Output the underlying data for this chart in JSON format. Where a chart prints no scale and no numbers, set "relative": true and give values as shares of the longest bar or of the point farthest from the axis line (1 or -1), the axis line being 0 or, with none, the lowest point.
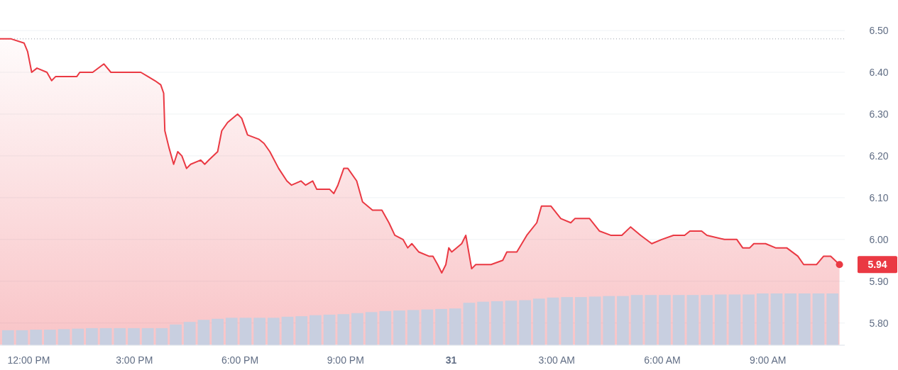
{
  "chart_data": [
    {
      "type": "area",
      "x": [
        "--10-30T11:11",
        "--10-30T11:30",
        "--10-30T11:52",
        "--10-30T11:58",
        "--10-30T12:05",
        "--10-30T12:14",
        "--10-30T12:31",
        "--10-30T12:39",
        "--10-30T12:46",
        "--10-30T13:13",
        "--10-30T13:22",
        "--10-30T13:27",
        "--10-30T13:49",
        "--10-30T14:08",
        "--10-30T14:20",
        "--10-30T14:40",
        "--10-30T14:49",
        "--10-30T15:11",
        "--10-30T15:23",
        "--10-30T15:35",
        "--10-30T15:45",
        "--10-30T15:50",
        "--10-30T15:52",
        "--10-30T15:59",
        "--10-30T16:07",
        "--10-30T16:14",
        "--10-30T16:21",
        "--10-30T16:29",
        "--10-30T16:36",
        "--10-30T16:53",
        "--10-30T17:00",
        "--10-30T17:07",
        "--10-30T17:22",
        "--10-30T17:29",
        "--10-30T17:39",
        "--10-30T17:56",
        "--10-30T18:03",
        "--10-30T18:13",
        "--10-30T18:32",
        "--10-30T18:41",
        "--10-30T18:51",
        "--10-30T19:06",
        "--10-30T19:20",
        "--10-30T19:28",
        "--10-30T19:44",
        "--10-30T19:52",
        "--10-30T20:04",
        "--10-30T20:11",
        "--10-30T20:33",
        "--10-30T20:40",
        "--10-30T20:47",
        "--10-30T20:57",
        "--10-30T21:04",
        "--10-30T21:19",
        "--10-30T21:29",
        "--10-30T21:46",
        "--10-30T22:02",
        "--10-30T22:14",
        "--10-30T22:24",
        "--10-30T22:38",
        "--10-30T22:46",
        "--10-30T22:53",
        "--10-30T23:05",
        "--10-30T23:22",
        "--10-30T23:29",
        "--10-30T23:37",
        "--10-30T23:44",
        "--10-30T23:51",
        "--10-30T23:56",
        "--10-31T00:01",
        "--10-31T00:18",
        "--10-31T00:25",
        "--10-31T00:30",
        "--10-31T00:35",
        "--10-31T00:42",
        "--10-31T01:01",
        "--10-31T01:08",
        "--10-31T01:28",
        "--10-31T01:35",
        "--10-31T01:52",
        "--10-31T02:09",
        "--10-31T02:26",
        "--10-31T02:34",
        "--10-31T02:50",
        "--10-31T03:07",
        "--10-31T03:24",
        "--10-31T03:31",
        "--10-31T03:49",
        "--10-31T03:56",
        "--10-31T04:13",
        "--10-31T04:32",
        "--10-31T04:51",
        "--10-31T05:06",
        "--10-31T05:23",
        "--10-31T05:42",
        "--10-31T05:59",
        "--10-31T06:19",
        "--10-31T06:38",
        "--10-31T06:47",
        "--10-31T07:07",
        "--10-31T07:16",
        "--10-31T07:46",
        "--10-31T08:07",
        "--10-31T08:17",
        "--10-31T08:29",
        "--10-31T08:36",
        "--10-31T08:56",
        "--10-31T09:13",
        "--10-31T09:32",
        "--10-31T09:51",
        "--10-31T10:01",
        "--10-31T10:23",
        "--10-31T10:35",
        "--10-31T10:47",
        "--10-31T11:02"
      ],
      "series": [
        {
          "color": "#ea3943",
          "values": [
            6.48,
            6.48,
            6.47,
            6.45,
            6.4,
            6.41,
            6.4,
            6.38,
            6.39,
            6.39,
            6.39,
            6.4,
            6.4,
            6.42,
            6.4,
            6.4,
            6.4,
            6.4,
            6.39,
            6.38,
            6.37,
            6.35,
            6.26,
            6.22,
            6.18,
            6.21,
            6.2,
            6.17,
            6.18,
            6.19,
            6.18,
            6.19,
            6.21,
            6.26,
            6.28,
            6.3,
            6.29,
            6.25,
            6.24,
            6.23,
            6.21,
            6.17,
            6.14,
            6.13,
            6.14,
            6.13,
            6.14,
            6.12,
            6.12,
            6.11,
            6.13,
            6.17,
            6.17,
            6.14,
            6.09,
            6.07,
            6.07,
            6.04,
            6.01,
            6.0,
            5.98,
            5.99,
            5.97,
            5.96,
            5.96,
            5.94,
            5.92,
            5.94,
            5.98,
            5.97,
            5.99,
            6.01,
            5.97,
            5.93,
            5.94,
            5.94,
            5.94,
            5.95,
            5.97,
            5.97,
            6.01,
            6.04,
            6.08,
            6.08,
            6.05,
            6.04,
            6.05,
            6.05,
            6.05,
            6.02,
            6.01,
            6.01,
            6.03,
            6.01,
            5.99,
            6.0,
            6.01,
            6.01,
            6.02,
            6.02,
            6.01,
            6.0,
            6.0,
            5.98,
            5.98,
            5.99,
            5.99,
            5.98,
            5.98,
            5.96,
            5.94,
            5.94,
            5.96,
            5.96,
            5.94
          ]
        }
      ],
      "xlim": [
        "--10-30T11:11",
        "--10-31T11:11"
      ],
      "ylim": [
        5.747,
        6.573
      ],
      "xticks": [
        {
          "value": "--10-30T12:00",
          "label": "12:00 PM"
        },
        {
          "value": "--10-30T15:00",
          "label": "3:00 PM"
        },
        {
          "value": "--10-30T18:00",
          "label": "6:00 PM"
        },
        {
          "value": "--10-30T21:00",
          "label": "9:00 PM"
        },
        {
          "value": "--10-31T00:00",
          "label": "31"
        },
        {
          "value": "--10-31T03:00",
          "label": "3:00 AM"
        },
        {
          "value": "--10-31T06:00",
          "label": "6:00 AM"
        },
        {
          "value": "--10-31T09:00",
          "label": "9:00 AM"
        }
      ],
      "yticks": [
        {
          "value": 5.8,
          "label": "5.80"
        },
        {
          "value": 5.9,
          "label": "5.90"
        },
        {
          "value": 6.0,
          "label": "6.00"
        },
        {
          "value": 6.1,
          "label": "6.10"
        },
        {
          "value": 6.2,
          "label": "6.20"
        },
        {
          "value": 6.3,
          "label": "6.30"
        },
        {
          "value": 6.4,
          "label": "6.40"
        },
        {
          "value": 6.5,
          "label": "6.50"
        }
      ],
      "grid": "y",
      "ref_lines": [
        {
          "axis": "y",
          "value": 6.48,
          "color": "#9aa0ac",
          "line_style": "dotted"
        }
      ],
      "annotations": [
        {
          "text": "5.94",
          "x": "--10-31T11:02",
          "y": 5.94
        }
      ]
    },
    {
      "type": "bar",
      "relative": true,
      "color": "#c8cfe0",
      "categories": [
        null,
        null,
        null,
        null,
        null,
        null,
        null,
        null,
        null,
        null,
        null,
        null,
        null,
        null,
        null,
        null,
        null,
        null,
        null,
        null,
        null,
        null,
        null,
        null,
        null,
        null,
        null,
        null,
        null,
        null,
        null,
        null,
        null,
        null,
        null,
        null,
        null,
        null,
        null,
        null,
        null,
        null,
        null,
        null,
        null,
        null,
        null,
        null,
        null,
        null,
        null,
        null,
        null,
        null,
        null,
        null,
        null,
        null,
        null,
        null
      ],
      "values": [
        0.29,
        0.29,
        0.3,
        0.3,
        0.31,
        0.32,
        0.33,
        0.33,
        0.33,
        0.33,
        0.33,
        0.33,
        0.4,
        0.45,
        0.49,
        0.51,
        0.53,
        0.53,
        0.53,
        0.53,
        0.55,
        0.56,
        0.58,
        0.59,
        0.6,
        0.62,
        0.64,
        0.66,
        0.67,
        0.68,
        0.69,
        0.7,
        0.71,
        0.82,
        0.84,
        0.85,
        0.86,
        0.87,
        0.9,
        0.92,
        0.93,
        0.93,
        0.94,
        0.95,
        0.95,
        0.97,
        0.97,
        0.97,
        0.97,
        0.97,
        0.97,
        0.98,
        0.98,
        0.98,
        1,
        1,
        1,
        1,
        1,
        1
      ]
    }
  ]
}
